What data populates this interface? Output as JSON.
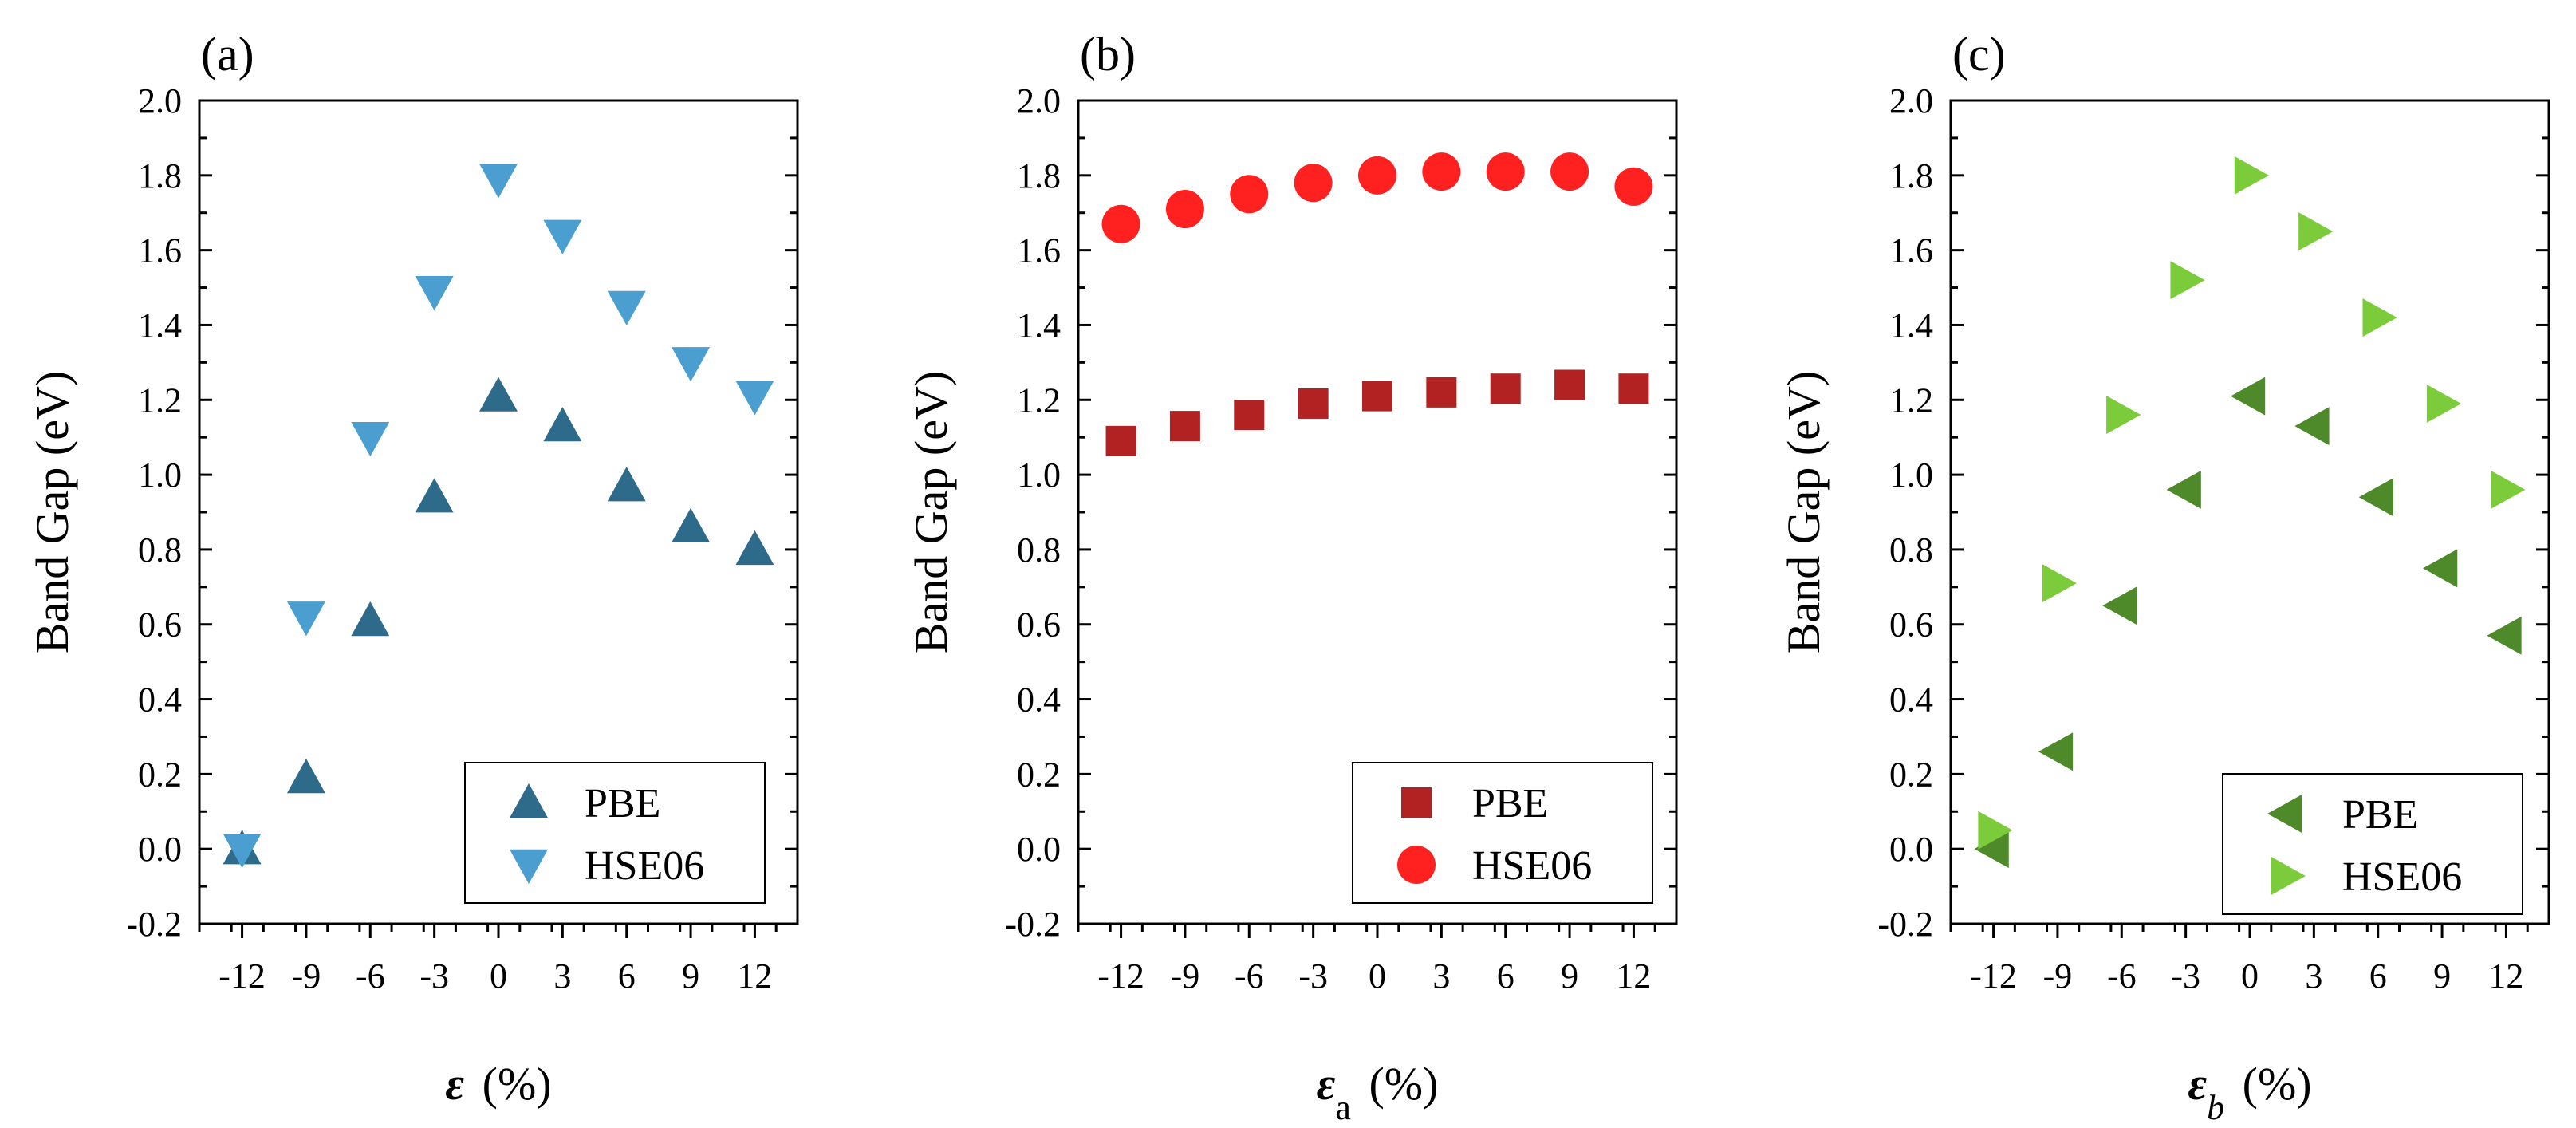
{
  "chart_data": [
    {
      "type": "scatter",
      "panel_label": "(a)",
      "ylabel": "Band Gap (eV)",
      "xlabel_symbol": "ε",
      "xlabel_sub": "",
      "xlabel_unit": "(%)",
      "ylim": [
        -0.2,
        2.0
      ],
      "xlim": [
        -14,
        14
      ],
      "xticks": [
        -12,
        -9,
        -6,
        -3,
        0,
        3,
        6,
        9,
        12
      ],
      "xtick_labels": [
        "-12",
        "-9",
        "-6",
        "-3",
        "0",
        "3",
        "6",
        "9",
        "12"
      ],
      "yticks": [
        -0.2,
        0.0,
        0.2,
        0.4,
        0.6,
        0.8,
        1.0,
        1.2,
        1.4,
        1.6,
        1.8,
        2.0
      ],
      "ytick_labels": [
        "-0.2",
        "0.0",
        "0.2",
        "0.4",
        "0.6",
        "0.8",
        "1.0",
        "1.2",
        "1.4",
        "1.6",
        "1.8",
        "2.0"
      ],
      "legend_position": "bottom-right",
      "series": [
        {
          "name": "PBE",
          "marker": "triangle-up",
          "color": "#2E6A8A",
          "x": [
            -12,
            -9,
            -6,
            -3,
            0,
            3,
            6,
            9,
            12
          ],
          "y": [
            0.0,
            0.19,
            0.61,
            0.94,
            1.21,
            1.13,
            0.97,
            0.86,
            0.8
          ]
        },
        {
          "name": "HSE06",
          "marker": "triangle-down",
          "color": "#4A9FD0",
          "x": [
            -12,
            -9,
            -6,
            -3,
            0,
            3,
            6,
            9,
            12
          ],
          "y": [
            0.0,
            0.62,
            1.1,
            1.49,
            1.79,
            1.64,
            1.45,
            1.3,
            1.21
          ]
        }
      ]
    },
    {
      "type": "scatter",
      "panel_label": "(b)",
      "ylabel": "Band Gap (eV)",
      "xlabel_symbol": "ε",
      "xlabel_sub": "a",
      "xlabel_unit": "(%)",
      "ylim": [
        -0.2,
        2.0
      ],
      "xlim": [
        -14,
        14
      ],
      "xticks": [
        -12,
        -9,
        -6,
        -3,
        0,
        3,
        6,
        9,
        12
      ],
      "xtick_labels": [
        "-12",
        "-9",
        "-6",
        "-3",
        "0",
        "3",
        "6",
        "9",
        "12"
      ],
      "yticks": [
        -0.2,
        0.0,
        0.2,
        0.4,
        0.6,
        0.8,
        1.0,
        1.2,
        1.4,
        1.6,
        1.8,
        2.0
      ],
      "ytick_labels": [
        "-0.2",
        "0.0",
        "0.2",
        "0.4",
        "0.6",
        "0.8",
        "1.0",
        "1.2",
        "1.4",
        "1.6",
        "1.8",
        "2.0"
      ],
      "legend_position": "bottom-right",
      "series": [
        {
          "name": "PBE",
          "marker": "square",
          "color": "#B22222",
          "x": [
            -12,
            -9,
            -6,
            -3,
            0,
            3,
            6,
            9,
            12
          ],
          "y": [
            1.09,
            1.13,
            1.16,
            1.19,
            1.21,
            1.22,
            1.23,
            1.24,
            1.23
          ]
        },
        {
          "name": "HSE06",
          "marker": "circle",
          "color": "#FF2020",
          "x": [
            -12,
            -9,
            -6,
            -3,
            0,
            3,
            6,
            9,
            12
          ],
          "y": [
            1.67,
            1.71,
            1.75,
            1.78,
            1.8,
            1.81,
            1.81,
            1.81,
            1.77
          ]
        }
      ]
    },
    {
      "type": "scatter",
      "panel_label": "(c)",
      "ylabel": "Band Gap (eV)",
      "xlabel_symbol": "ε",
      "xlabel_sub": "b",
      "xlabel_unit": "(%)",
      "ylim": [
        -0.2,
        2.0
      ],
      "xlim": [
        -14,
        14
      ],
      "xticks": [
        -12,
        -9,
        -6,
        -3,
        0,
        3,
        6,
        9,
        12
      ],
      "xtick_labels": [
        "-12",
        "-9",
        "-6",
        "-3",
        "0",
        "3",
        "6",
        "9",
        "12"
      ],
      "yticks": [
        -0.2,
        0.0,
        0.2,
        0.4,
        0.6,
        0.8,
        1.0,
        1.2,
        1.4,
        1.6,
        1.8,
        2.0
      ],
      "ytick_labels": [
        "-0.2",
        "0.0",
        "0.2",
        "0.4",
        "0.6",
        "0.8",
        "1.0",
        "1.2",
        "1.4",
        "1.6",
        "1.8",
        "2.0"
      ],
      "legend_position": "bottom-right",
      "series": [
        {
          "name": "PBE",
          "marker": "triangle-left",
          "color": "#4E8A2A",
          "x": [
            -12,
            -9,
            -6,
            -3,
            0,
            3,
            6,
            9,
            12
          ],
          "y": [
            0.0,
            0.26,
            0.65,
            0.96,
            1.21,
            1.13,
            0.94,
            0.75,
            0.57
          ]
        },
        {
          "name": "HSE06",
          "marker": "triangle-right",
          "color": "#7BCB3A",
          "x": [
            -12,
            -9,
            -6,
            -3,
            0,
            3,
            6,
            9,
            12
          ],
          "y": [
            0.05,
            0.71,
            1.16,
            1.52,
            1.8,
            1.65,
            1.42,
            1.19,
            0.96
          ]
        }
      ]
    }
  ]
}
